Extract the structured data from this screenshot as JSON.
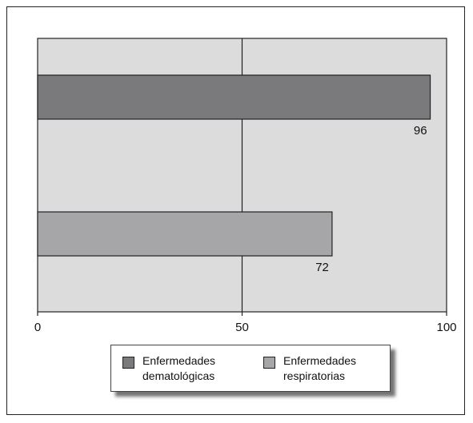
{
  "chart_data": {
    "type": "bar",
    "orientation": "horizontal",
    "categories": [
      "Enfermedades dematológicas",
      "Enfermedades respiratorias"
    ],
    "values": [
      96,
      72
    ],
    "data_labels": [
      "96",
      "72"
    ],
    "xlim": [
      0,
      100
    ],
    "x_ticks": [
      0,
      50,
      100
    ],
    "x_tick_labels": [
      "0",
      "50",
      "100"
    ],
    "grid": "vertical line at 50",
    "legend_position": "bottom",
    "series_colors": [
      "#7a7a7d",
      "#a6a6a9"
    ],
    "plot_background": "#dcdcdc",
    "legend": [
      {
        "label": "Enfermedades\ndematológicas",
        "color": "#7a7a7d"
      },
      {
        "label": "Enfermedades\nrespiratorias",
        "color": "#a6a6a9"
      }
    ]
  }
}
